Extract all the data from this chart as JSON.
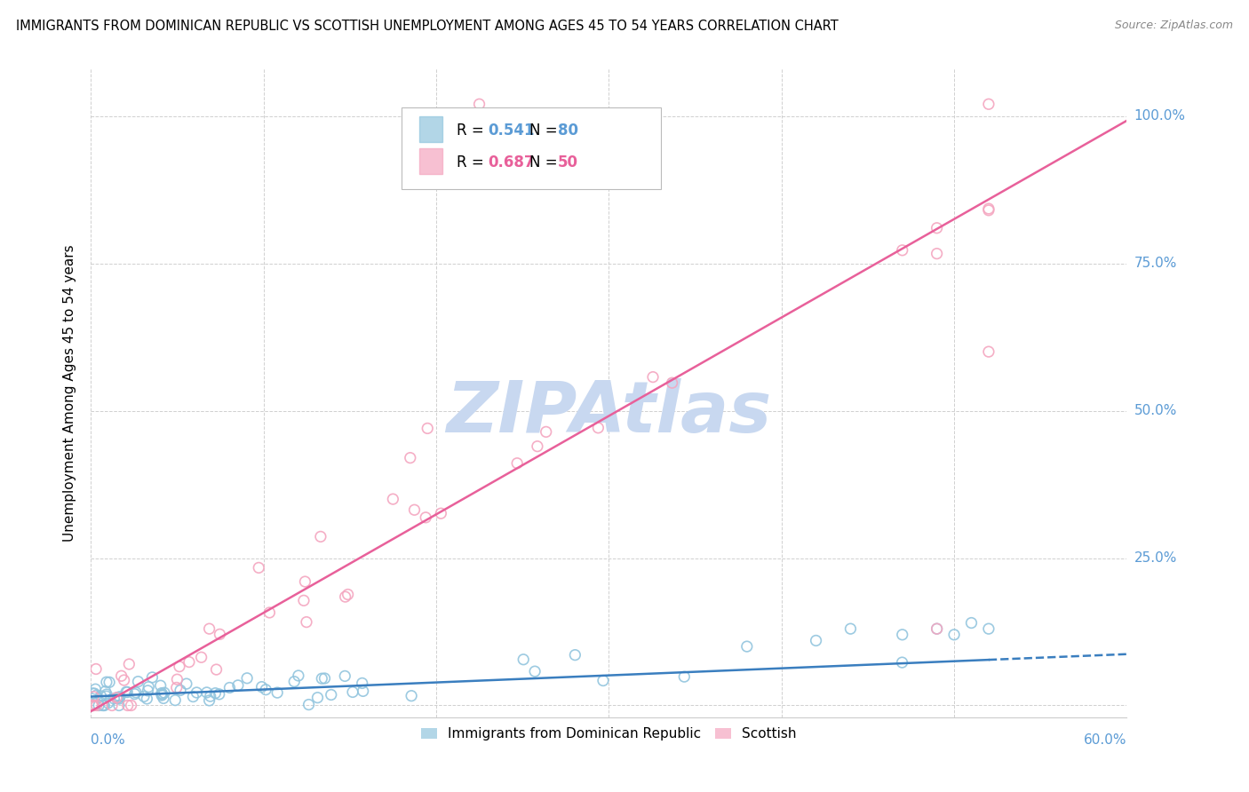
{
  "title": "IMMIGRANTS FROM DOMINICAN REPUBLIC VS SCOTTISH UNEMPLOYMENT AMONG AGES 45 TO 54 YEARS CORRELATION CHART",
  "source": "Source: ZipAtlas.com",
  "ylabel": "Unemployment Among Ages 45 to 54 years",
  "xlim": [
    0.0,
    0.6
  ],
  "ylim": [
    -0.02,
    1.08
  ],
  "blue_R": "0.541",
  "blue_N": "80",
  "pink_R": "0.687",
  "pink_N": "50",
  "blue_color": "#92c5de",
  "pink_color": "#f4a6c0",
  "blue_line_color": "#3a7ebf",
  "pink_line_color": "#e8609a",
  "blue_text_color": "#5b9bd5",
  "pink_text_color": "#e8609a",
  "watermark": "ZIPAtlas",
  "watermark_color": "#c8d8f0",
  "legend_blue": "Immigrants from Dominican Republic",
  "legend_pink": "Scottish",
  "background_color": "#ffffff",
  "grid_color": "#d0d0d0",
  "title_fontsize": 10.5,
  "tick_label_color": "#5b9bd5",
  "blue_slope": 0.12,
  "blue_intercept": 0.015,
  "pink_slope": 1.67,
  "pink_intercept": -0.01
}
